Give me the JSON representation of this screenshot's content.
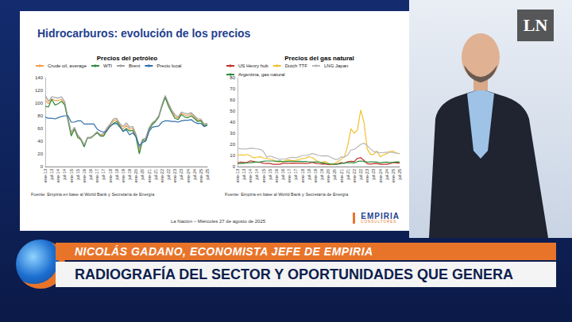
{
  "header": {
    "logo": "LN"
  },
  "slide": {
    "title": "Hidrocarburos: evolución de los precios",
    "footer": "La Nación – Miércoles 27 de agosto de 2025",
    "brand": "EMPIRIA",
    "brand_sub": "CONSULTORES"
  },
  "chart_data": [
    {
      "type": "line",
      "title": "Precios del petróleo",
      "source": "Fuente: Empiria en base al World Bank y Secretaría de Energía",
      "categories": [
        "ene-13",
        null,
        "jul-13",
        null,
        "ene-14",
        null,
        "jul-14",
        null,
        "ene-15",
        null,
        "jul-15",
        null,
        "ene-16",
        null,
        "jul-16",
        null,
        "ene-17",
        null,
        "jul-17",
        null,
        "ene-18",
        null,
        "jul-18",
        null,
        "ene-19",
        null,
        "jul-19",
        null,
        "ene-20",
        null,
        "jul-20",
        null,
        "ene-21",
        null,
        "jul-21",
        null,
        "ene-22",
        null,
        "jul-22",
        null,
        "ene-23",
        null,
        "jul-23",
        null,
        "ene-24",
        null,
        "jul-24",
        null,
        "ene-25",
        null,
        "jul-25"
      ],
      "series": [
        {
          "name": "Crude oil, average",
          "color": "#f0a04b",
          "values": [
            105,
            99,
            107,
            104,
            104,
            106,
            99,
            75,
            51,
            60,
            48,
            43,
            32,
            45,
            45,
            49,
            54,
            49,
            50,
            59,
            65,
            72,
            74,
            66,
            59,
            65,
            59,
            60,
            48,
            24,
            42,
            43,
            60,
            68,
            72,
            79,
            96,
            110,
            98,
            87,
            79,
            76,
            84,
            81,
            80,
            83,
            78,
            73,
            73,
            65,
            67
          ]
        },
        {
          "name": "WTI",
          "color": "#2e8b3a",
          "values": [
            95,
            94,
            106,
            97,
            99,
            103,
            97,
            73,
            48,
            59,
            46,
            42,
            31,
            45,
            45,
            49,
            53,
            48,
            48,
            57,
            63,
            68,
            71,
            64,
            55,
            60,
            56,
            57,
            46,
            20,
            41,
            41,
            58,
            66,
            71,
            78,
            95,
            109,
            95,
            85,
            76,
            74,
            82,
            78,
            77,
            80,
            76,
            71,
            72,
            64,
            66
          ]
        },
        {
          "name": "Brent",
          "color": "#a0a0a0",
          "values": [
            112,
            103,
            110,
            109,
            108,
            110,
            102,
            77,
            54,
            62,
            50,
            44,
            34,
            46,
            46,
            50,
            55,
            50,
            52,
            61,
            67,
            75,
            76,
            68,
            63,
            69,
            62,
            63,
            51,
            29,
            43,
            45,
            61,
            69,
            73,
            80,
            98,
            112,
            100,
            89,
            82,
            78,
            86,
            84,
            83,
            85,
            80,
            75,
            75,
            67,
            68
          ]
        },
        {
          "name": "Precio local",
          "color": "#2f6fa8",
          "values": [
            78,
            76,
            76,
            75,
            77,
            79,
            80,
            80,
            70,
            70,
            72,
            72,
            67,
            67,
            67,
            67,
            59,
            56,
            54,
            56,
            64,
            67,
            68,
            62,
            56,
            58,
            50,
            53,
            47,
            33,
            38,
            40,
            55,
            62,
            63,
            64,
            70,
            72,
            72,
            71,
            71,
            70,
            72,
            73,
            73,
            74,
            70,
            68,
            68,
            63,
            65
          ]
        }
      ],
      "ylim": [
        0,
        140
      ],
      "yticks": [
        0,
        20,
        40,
        60,
        80,
        100,
        120,
        140
      ],
      "grid": false,
      "legend": "top"
    },
    {
      "type": "line",
      "title": "Precios del gas natural",
      "source": "Fuente: Empiria en base al World Bank y Secretaría de Energía",
      "categories": [
        "ene-13",
        null,
        "jul-13",
        null,
        "ene-14",
        null,
        "jul-14",
        null,
        "ene-15",
        null,
        "jul-15",
        null,
        "ene-16",
        null,
        "jul-16",
        null,
        "ene-17",
        null,
        "jul-17",
        null,
        "ene-18",
        null,
        "jul-18",
        null,
        "ene-19",
        null,
        "jul-19",
        null,
        "ene-20",
        null,
        "jul-20",
        null,
        "ene-21",
        null,
        "jul-21",
        null,
        "ene-22",
        null,
        "jul-22",
        null,
        "ene-23",
        null,
        "jul-23",
        null,
        "ene-24",
        null,
        "jul-24",
        null,
        "ene-25",
        null,
        "jul-25"
      ],
      "series": [
        {
          "name": "US Henry hub",
          "color": "#c0302a",
          "values": [
            3.4,
            4.0,
            3.6,
            3.9,
            5.2,
            4.6,
            3.9,
            3.8,
            2.9,
            2.8,
            2.8,
            2.1,
            2.0,
            2.1,
            2.9,
            3.0,
            3.0,
            3.1,
            2.9,
            2.9,
            3.0,
            2.8,
            2.9,
            3.8,
            2.9,
            2.5,
            2.3,
            2.4,
            1.9,
            1.7,
            2.0,
            2.6,
            3.5,
            2.9,
            4.4,
            4.8,
            4.6,
            7.5,
            8.0,
            5.5,
            2.6,
            2.2,
            2.6,
            2.7,
            2.1,
            2.1,
            2.1,
            2.6,
            3.6,
            3.2,
            3.1
          ]
        },
        {
          "name": "Dutch TTF",
          "color": "#f2c12e",
          "values": [
            10.5,
            10.5,
            10.2,
            10.9,
            9.5,
            7.8,
            8.4,
            8.8,
            7.7,
            7.3,
            6.8,
            5.9,
            4.4,
            4.2,
            4.3,
            5.6,
            6.0,
            5.1,
            5.6,
            6.4,
            7.2,
            7.4,
            8.9,
            8.2,
            6.1,
            4.2,
            3.5,
            4.7,
            3.0,
            1.8,
            2.9,
            4.7,
            6.5,
            9.0,
            19.0,
            34.0,
            30.0,
            33.0,
            51.0,
            40.0,
            16.0,
            11.0,
            11.0,
            14.0,
            8.7,
            10.5,
            11.5,
            13.5,
            14.0,
            12.0,
            11.5
          ]
        },
        {
          "name": "LNG Japan",
          "color": "#b8b8b8",
          "values": [
            16.5,
            16.0,
            15.8,
            16.0,
            16.5,
            16.3,
            15.9,
            15.5,
            13.5,
            8.5,
            9.5,
            8.5,
            7.5,
            6.5,
            6.8,
            6.9,
            8.0,
            8.3,
            8.0,
            8.6,
            10.0,
            10.0,
            10.5,
            11.7,
            11.0,
            10.0,
            9.5,
            9.8,
            9.5,
            8.0,
            6.5,
            6.5,
            8.7,
            8.5,
            10.5,
            15.0,
            15.5,
            17.5,
            20.0,
            21.0,
            19.0,
            16.0,
            13.5,
            13.0,
            12.5,
            12.5,
            13.0,
            12.9,
            12.5,
            12.0,
            11.8
          ]
        },
        {
          "name": "Argentina, gas natural",
          "color": "#2e8b3a",
          "values": [
            2.5,
            2.8,
            3.0,
            3.2,
            3.5,
            3.8,
            4.0,
            4.2,
            4.8,
            5.0,
            5.0,
            5.0,
            4.8,
            4.9,
            4.5,
            4.6,
            4.7,
            4.7,
            4.6,
            4.8,
            4.6,
            4.5,
            4.3,
            4.1,
            4.2,
            4.0,
            3.5,
            3.0,
            2.5,
            2.3,
            2.1,
            2.2,
            2.8,
            3.3,
            3.5,
            3.5,
            3.3,
            4.5,
            5.0,
            4.5,
            4.0,
            4.3,
            4.2,
            4.0,
            3.3,
            3.8,
            4.0,
            3.6,
            3.8,
            4.2,
            4.0
          ]
        }
      ],
      "ylim": [
        0,
        80
      ],
      "yticks": [
        0,
        10,
        20,
        30,
        40,
        50,
        60,
        70,
        80
      ],
      "grid": false,
      "legend": "top"
    }
  ],
  "lower_third": {
    "name": "NICOLÁS GADANO, ECONOMISTA JEFE DE EMPIRIA",
    "headline": "RADIOGRAFÍA DEL SECTOR Y OPORTUNIDADES QUE GENERA"
  }
}
